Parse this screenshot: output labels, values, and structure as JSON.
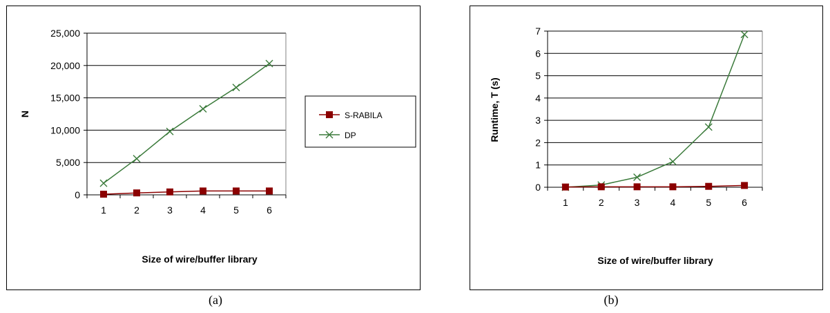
{
  "chart_data": [
    {
      "type": "line",
      "panel_label": "(a)",
      "xlabel": "Size of wire/buffer library",
      "ylabel": "N",
      "categories": [
        "1",
        "2",
        "3",
        "4",
        "5",
        "6"
      ],
      "ylim": [
        0,
        25000
      ],
      "yticks": [
        "0",
        "5,000",
        "10,000",
        "15,000",
        "20,000",
        "25,000"
      ],
      "yticks_values": [
        0,
        5000,
        10000,
        15000,
        20000,
        25000
      ],
      "grid": true,
      "legend": "right",
      "series": [
        {
          "name": "S-RABILA",
          "color": "#8B0000",
          "marker": "square",
          "values": [
            100,
            300,
            450,
            600,
            600,
            600
          ]
        },
        {
          "name": "DP",
          "color": "#3A7A3A",
          "marker": "x",
          "values": [
            1800,
            5600,
            9800,
            13300,
            16600,
            20300
          ]
        }
      ]
    },
    {
      "type": "line",
      "panel_label": "(b)",
      "xlabel": "Size of wire/buffer library",
      "ylabel": "Runtime, T (s)",
      "categories": [
        "1",
        "2",
        "3",
        "4",
        "5",
        "6"
      ],
      "ylim": [
        0,
        7
      ],
      "yticks": [
        "0",
        "1",
        "2",
        "3",
        "4",
        "5",
        "6",
        "7"
      ],
      "yticks_values": [
        0,
        1,
        2,
        3,
        4,
        5,
        6,
        7
      ],
      "grid": true,
      "legend": "none",
      "series": [
        {
          "name": "S-RABILA",
          "color": "#8B0000",
          "marker": "square",
          "values": [
            0.01,
            0.02,
            0.02,
            0.02,
            0.04,
            0.08
          ]
        },
        {
          "name": "DP",
          "color": "#3A7A3A",
          "marker": "x",
          "values": [
            0.0,
            0.1,
            0.45,
            1.15,
            2.7,
            6.85
          ]
        }
      ]
    }
  ]
}
